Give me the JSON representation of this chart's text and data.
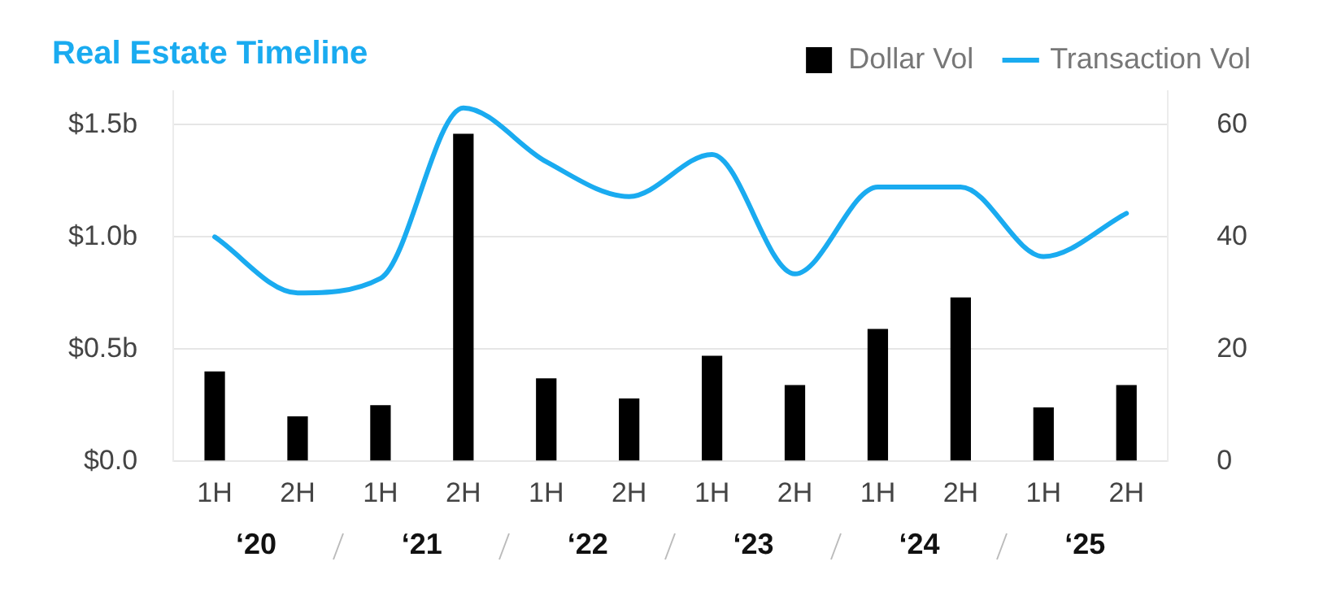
{
  "chart_data": {
    "type": "bar",
    "title": "Real Estate Timeline",
    "categories": [
      "1H",
      "2H",
      "1H",
      "2H",
      "1H",
      "2H",
      "1H",
      "2H",
      "1H",
      "2H",
      "1H",
      "2H"
    ],
    "series": [
      {
        "name": "Dollar Vol",
        "color": "#000000",
        "values": [
          0.4,
          0.2,
          0.25,
          1.46,
          0.37,
          0.28,
          0.47,
          0.34,
          0.59,
          0.73,
          0.24,
          0.34
        ]
      },
      {
        "name": "Transaction Vol",
        "type": "line",
        "axis": "y2",
        "color": "#1aabf0",
        "values": [
          40,
          30,
          32.6,
          63,
          53.4,
          47.2,
          54.7,
          33.4,
          48.9,
          48.9,
          36.5,
          44.2
        ]
      }
    ],
    "ylim": [
      0,
      1.65
    ],
    "yticks": [
      {
        "value": 0,
        "label": "$0.0"
      },
      {
        "value": 0.5,
        "label": "$0.5b"
      },
      {
        "value": 1,
        "label": "$1.0b"
      },
      {
        "value": 1.5,
        "label": "$1.5b"
      }
    ],
    "y2lim": [
      0,
      66
    ],
    "y2ticks": [
      0,
      20,
      40,
      60
    ],
    "annotations": [
      "‘20",
      "‘21",
      "‘22",
      "‘23",
      "‘24",
      "‘25"
    ],
    "grid": "y",
    "legend": "top right",
    "marker": "none",
    "line_style": "solid"
  }
}
